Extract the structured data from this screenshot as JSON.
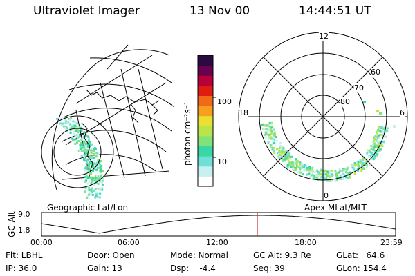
{
  "header": {
    "instrument": "Ultraviolet Imager",
    "date": "13 Nov 00",
    "time": "14:44:51 UT"
  },
  "colorbar": {
    "unit_label": "photon cm⁻²s⁻¹",
    "ticks": [
      "100",
      "10"
    ],
    "colors": [
      "#ffffff",
      "#c8f0f0",
      "#6fe0d8",
      "#39d6a6",
      "#7fe27a",
      "#b9e44a",
      "#e9e030",
      "#f7a020",
      "#f06a18",
      "#e01e10",
      "#b8003a",
      "#6a0050",
      "#2a0a40"
    ]
  },
  "polar_plot": {
    "mlt_labels": [
      "12",
      "18",
      "6",
      "0"
    ],
    "lat_labels": [
      "60",
      "70",
      "80"
    ],
    "panel_label": "Apex MLat/MLT"
  },
  "geo_plot": {
    "panel_label": "Geographic Lat/Lon"
  },
  "timeline": {
    "y_label": "GC Alt",
    "y_ticks": [
      "9.0",
      "1.8"
    ],
    "x_ticks": [
      "00:00",
      "06:00",
      "12:00",
      "18:00",
      "23:59"
    ],
    "marker_color": "#cc0000"
  },
  "info": {
    "flt": "Flt: LBHL",
    "ip": "IP: 36.0",
    "door": "Door: Open",
    "gain": "Gain: 13",
    "mode": "Mode: Normal",
    "dsp": "Dsp:    -4.4",
    "gcalt": "GC Alt: 9.3 Re",
    "seq": "Seq: 39",
    "glat": "GLat:   64.6",
    "glon": "GLon: 154.4"
  }
}
